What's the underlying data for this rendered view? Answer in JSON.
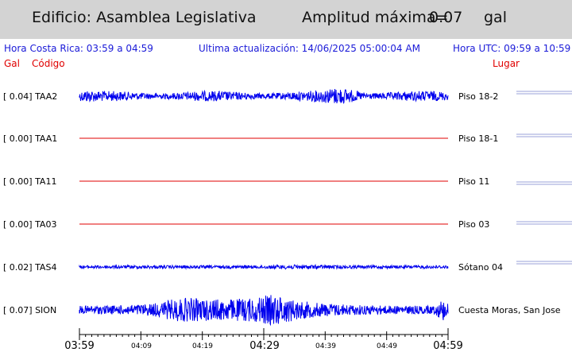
{
  "header": {
    "building": "Edificio: Asamblea Legislativa",
    "amplitude_label": "Amplitud máxima=",
    "amplitude_value": "0.07",
    "amplitude_unit": "gal"
  },
  "info": {
    "local_time": "Hora Costa Rica:     03:59 a 04:59",
    "last_update": "Ultima actualización:  14/06/2025 05:00:04 AM",
    "utc_time": "Hora UTC:    09:59 a 10:59"
  },
  "columns": {
    "gal": "Gal",
    "code": "Código",
    "place": "Lugar"
  },
  "channels": [
    {
      "label": "[   0.04] TAA2",
      "place": "Piso 18-2",
      "amplitude": 0.04,
      "color": "#0000ee"
    },
    {
      "label": "[   0.00] TAA1",
      "place": "Piso 18-1",
      "amplitude": 0.0,
      "color": "#e00000"
    },
    {
      "label": "[   0.00] TA11",
      "place": "Piso 11",
      "amplitude": 0.0,
      "color": "#e00000"
    },
    {
      "label": "[   0.00] TA03",
      "place": "Piso 03",
      "amplitude": 0.0,
      "color": "#e00000"
    },
    {
      "label": "[   0.02] TAS4",
      "place": "Sótano 04",
      "amplitude": 0.02,
      "color": "#0000ee"
    },
    {
      "label": "[   0.07] SION",
      "place": "Cuesta Moras, San Jose",
      "amplitude": 0.07,
      "color": "#0000ee"
    }
  ],
  "time_axis": {
    "major": [
      "03:59",
      "04:29",
      "04:59"
    ],
    "minor": [
      "04:09",
      "04:19",
      "04:39",
      "04:49"
    ]
  }
}
